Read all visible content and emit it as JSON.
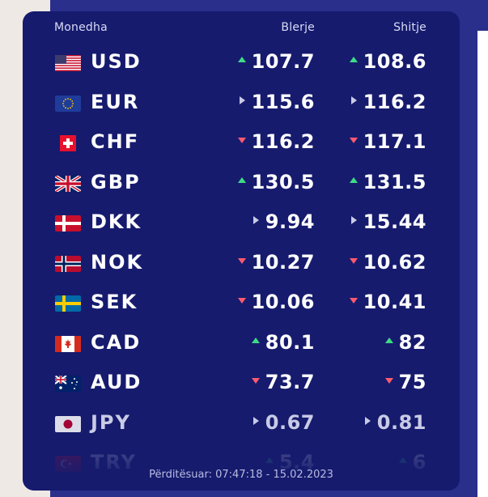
{
  "header": {
    "currency": "Monedha",
    "buy": "Blerje",
    "sell": "Shitje"
  },
  "rows": [
    {
      "code": "USD",
      "flag": "us-flag-icon",
      "buy": "107.7",
      "buy_trend": "up",
      "sell": "108.6",
      "sell_trend": "up"
    },
    {
      "code": "EUR",
      "flag": "eu-flag-icon",
      "buy": "115.6",
      "buy_trend": "neutral",
      "sell": "116.2",
      "sell_trend": "neutral"
    },
    {
      "code": "CHF",
      "flag": "ch-flag-icon",
      "buy": "116.2",
      "buy_trend": "down",
      "sell": "117.1",
      "sell_trend": "down"
    },
    {
      "code": "GBP",
      "flag": "gb-flag-icon",
      "buy": "130.5",
      "buy_trend": "up",
      "sell": "131.5",
      "sell_trend": "up"
    },
    {
      "code": "DKK",
      "flag": "dk-flag-icon",
      "buy": "9.94",
      "buy_trend": "neutral",
      "sell": "15.44",
      "sell_trend": "neutral"
    },
    {
      "code": "NOK",
      "flag": "no-flag-icon",
      "buy": "10.27",
      "buy_trend": "down",
      "sell": "10.62",
      "sell_trend": "down"
    },
    {
      "code": "SEK",
      "flag": "se-flag-icon",
      "buy": "10.06",
      "buy_trend": "down",
      "sell": "10.41",
      "sell_trend": "down"
    },
    {
      "code": "CAD",
      "flag": "ca-flag-icon",
      "buy": "80.1",
      "buy_trend": "up",
      "sell": "82",
      "sell_trend": "up"
    },
    {
      "code": "AUD",
      "flag": "au-flag-icon",
      "buy": "73.7",
      "buy_trend": "down",
      "sell": "75",
      "sell_trend": "down"
    },
    {
      "code": "JPY",
      "flag": "jp-flag-icon",
      "buy": "0.67",
      "buy_trend": "neutral",
      "sell": "0.81",
      "sell_trend": "neutral"
    },
    {
      "code": "TRY",
      "flag": "tr-flag-icon",
      "buy": "5.4",
      "buy_trend": "up",
      "sell": "6",
      "sell_trend": "up"
    }
  ],
  "updated": "Përditësuar: 07:47:18 - 15.02.2023",
  "colors": {
    "card_bg": "#161b6e",
    "band_bg": "#2a2f8c",
    "up": "#3ddc84",
    "down": "#ff5a6e",
    "neutral": "#c9cbe6"
  }
}
